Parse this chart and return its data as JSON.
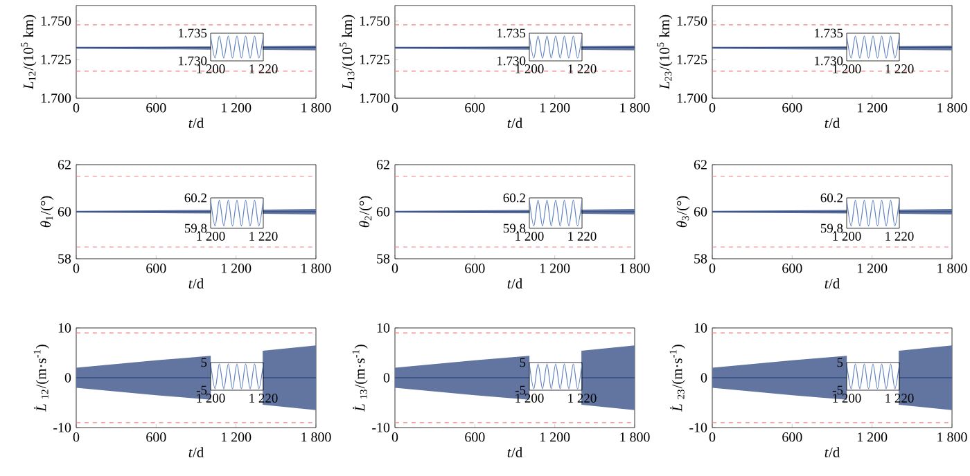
{
  "chart_data": [
    {
      "type": "line",
      "xlabel": "*t*/d",
      "ylabel": "*L*$_{12}$/(10$^{5}$ km)",
      "x": [
        0,
        600,
        1010,
        1200,
        1400,
        1800
      ],
      "series": [
        {
          "color": "#1f3a78",
          "values": [
            1.733,
            1.733,
            1.733,
            null,
            1.733,
            1.733
          ],
          "lower": [
            1.732,
            1.7317,
            1.7315,
            null,
            1.7313,
            1.731
          ],
          "upper": [
            1.733,
            1.7333,
            1.7335,
            null,
            1.7337,
            1.734
          ]
        }
      ],
      "xlim": [
        0,
        1800
      ],
      "xticks": [
        0,
        600,
        {
          "value": 1200,
          "label": "1 200"
        },
        {
          "value": 1800,
          "label": "1 800"
        }
      ],
      "ylim": [
        1.7,
        1.76
      ],
      "yticks": [
        {
          "value": 1.7,
          "label": "1.700"
        },
        1.725,
        {
          "value": 1.75,
          "label": "1.750"
        }
      ],
      "ref_lines": [
        {
          "axis": "y",
          "value": 1.7475,
          "color": "#f08080",
          "line_style": "dashed"
        },
        {
          "axis": "y",
          "value": 1.7175,
          "color": "#f08080",
          "line_style": "dashed"
        }
      ]
    },
    {
      "type": "line",
      "xlabel": "*t*/d",
      "ylabel": "*L*$_{13}$/(10$^{5}$ km)",
      "x": [
        0,
        600,
        1010,
        1200,
        1400,
        1800
      ],
      "series": [
        {
          "color": "#1f3a78",
          "values": [
            1.733,
            1.733,
            1.733,
            null,
            1.733,
            1.733
          ],
          "lower": [
            1.732,
            1.7317,
            1.7315,
            null,
            1.7313,
            1.731
          ],
          "upper": [
            1.733,
            1.7333,
            1.7335,
            null,
            1.7337,
            1.734
          ]
        }
      ],
      "xlim": [
        0,
        1800
      ],
      "xticks": [
        0,
        600,
        {
          "value": 1200,
          "label": "1 200"
        },
        {
          "value": 1800,
          "label": "1 800"
        }
      ],
      "ylim": [
        1.7,
        1.76
      ],
      "yticks": [
        {
          "value": 1.7,
          "label": "1.700"
        },
        1.725,
        {
          "value": 1.75,
          "label": "1.750"
        }
      ],
      "ref_lines": [
        {
          "axis": "y",
          "value": 1.7475,
          "color": "#f08080",
          "line_style": "dashed"
        },
        {
          "axis": "y",
          "value": 1.7175,
          "color": "#f08080",
          "line_style": "dashed"
        }
      ]
    },
    {
      "type": "line",
      "xlabel": "*t*/d",
      "ylabel": "*L*$_{23}$/(10$^{5}$ km)",
      "x": [
        0,
        600,
        1010,
        1200,
        1400,
        1800
      ],
      "series": [
        {
          "color": "#1f3a78",
          "values": [
            1.733,
            1.733,
            1.733,
            null,
            1.733,
            1.733
          ],
          "lower": [
            1.732,
            1.7317,
            1.7315,
            null,
            1.7313,
            1.731
          ],
          "upper": [
            1.733,
            1.7333,
            1.7335,
            null,
            1.7337,
            1.734
          ]
        }
      ],
      "xlim": [
        0,
        1800
      ],
      "xticks": [
        0,
        600,
        {
          "value": 1200,
          "label": "1 200"
        },
        {
          "value": 1800,
          "label": "1 800"
        }
      ],
      "ylim": [
        1.7,
        1.76
      ],
      "yticks": [
        {
          "value": 1.7,
          "label": "1.700"
        },
        1.725,
        {
          "value": 1.75,
          "label": "1.750"
        }
      ],
      "ref_lines": [
        {
          "axis": "y",
          "value": 1.7475,
          "color": "#f08080",
          "line_style": "dashed"
        },
        {
          "axis": "y",
          "value": 1.7175,
          "color": "#f08080",
          "line_style": "dashed"
        }
      ]
    },
    {
      "type": "line",
      "xlabel": "*t*/d",
      "ylabel": "*θ*$_{1}$/(°)",
      "x": [
        0,
        600,
        1010,
        1200,
        1400,
        1800
      ],
      "series": [
        {
          "color": "#1f3a78",
          "values": [
            60,
            60,
            60,
            null,
            60,
            60
          ],
          "lower": [
            59.96,
            59.94,
            59.93,
            null,
            59.91,
            59.88
          ],
          "upper": [
            60.04,
            60.06,
            60.07,
            null,
            60.09,
            60.12
          ]
        }
      ],
      "xlim": [
        0,
        1800
      ],
      "xticks": [
        0,
        600,
        {
          "value": 1200,
          "label": "1 200"
        },
        {
          "value": 1800,
          "label": "1 800"
        }
      ],
      "ylim": [
        58,
        62
      ],
      "yticks": [
        58,
        60,
        62
      ],
      "ref_lines": [
        {
          "axis": "y",
          "value": 61.5,
          "color": "#f08080",
          "line_style": "dashed"
        },
        {
          "axis": "y",
          "value": 58.5,
          "color": "#f08080",
          "line_style": "dashed"
        }
      ]
    },
    {
      "type": "line",
      "xlabel": "*t*/d",
      "ylabel": "*θ*$_{2}$/(°)",
      "x": [
        0,
        600,
        1010,
        1200,
        1400,
        1800
      ],
      "series": [
        {
          "color": "#1f3a78",
          "values": [
            60,
            60,
            60,
            null,
            60,
            60
          ],
          "lower": [
            59.96,
            59.94,
            59.93,
            null,
            59.91,
            59.88
          ],
          "upper": [
            60.04,
            60.06,
            60.07,
            null,
            60.09,
            60.12
          ]
        }
      ],
      "xlim": [
        0,
        1800
      ],
      "xticks": [
        0,
        600,
        {
          "value": 1200,
          "label": "1 200"
        },
        {
          "value": 1800,
          "label": "1 800"
        }
      ],
      "ylim": [
        58,
        62
      ],
      "yticks": [
        58,
        60,
        62
      ],
      "ref_lines": [
        {
          "axis": "y",
          "value": 61.5,
          "color": "#f08080",
          "line_style": "dashed"
        },
        {
          "axis": "y",
          "value": 58.5,
          "color": "#f08080",
          "line_style": "dashed"
        }
      ]
    },
    {
      "type": "line",
      "xlabel": "*t*/d",
      "ylabel": "*θ*$_{3}$/(°)",
      "x": [
        0,
        600,
        1010,
        1200,
        1400,
        1800
      ],
      "series": [
        {
          "color": "#1f3a78",
          "values": [
            60,
            60,
            60,
            null,
            60,
            60
          ],
          "lower": [
            59.96,
            59.94,
            59.93,
            null,
            59.91,
            59.88
          ],
          "upper": [
            60.04,
            60.06,
            60.07,
            null,
            60.09,
            60.12
          ]
        }
      ],
      "xlim": [
        0,
        1800
      ],
      "xticks": [
        0,
        600,
        {
          "value": 1200,
          "label": "1 200"
        },
        {
          "value": 1800,
          "label": "1 800"
        }
      ],
      "ylim": [
        58,
        62
      ],
      "yticks": [
        58,
        60,
        62
      ],
      "ref_lines": [
        {
          "axis": "y",
          "value": 61.5,
          "color": "#f08080",
          "line_style": "dashed"
        },
        {
          "axis": "y",
          "value": 58.5,
          "color": "#f08080",
          "line_style": "dashed"
        }
      ]
    },
    {
      "type": "line",
      "xlabel": "*t*/d",
      "ylabel": "*L̇*$_{12}$/(m·s$^{-1}$)",
      "x": [
        0,
        600,
        1010,
        1200,
        1400,
        1800
      ],
      "series": [
        {
          "color": "#1f3a78",
          "values": [
            0,
            0,
            0,
            null,
            0,
            0
          ],
          "lower": [
            -2,
            -3.5,
            -4.4,
            null,
            -5.4,
            -6.5
          ],
          "upper": [
            2,
            3.5,
            4.4,
            null,
            5.4,
            6.5
          ]
        }
      ],
      "xlim": [
        0,
        1800
      ],
      "xticks": [
        0,
        600,
        {
          "value": 1200,
          "label": "1 200"
        },
        {
          "value": 1800,
          "label": "1 800"
        }
      ],
      "ylim": [
        -10,
        10
      ],
      "yticks": [
        -10,
        0,
        10
      ],
      "ref_lines": [
        {
          "axis": "y",
          "value": 9,
          "color": "#f08080",
          "line_style": "dashed"
        },
        {
          "axis": "y",
          "value": -9,
          "color": "#f08080",
          "line_style": "dashed"
        }
      ]
    },
    {
      "type": "line",
      "xlabel": "*t*/d",
      "ylabel": "*L̇*$_{13}$/(m·s$^{-1}$)",
      "x": [
        0,
        600,
        1010,
        1200,
        1400,
        1800
      ],
      "series": [
        {
          "color": "#1f3a78",
          "values": [
            0,
            0,
            0,
            null,
            0,
            0
          ],
          "lower": [
            -2,
            -3.5,
            -4.4,
            null,
            -5.4,
            -6.5
          ],
          "upper": [
            2,
            3.5,
            4.4,
            null,
            5.4,
            6.5
          ]
        }
      ],
      "xlim": [
        0,
        1800
      ],
      "xticks": [
        0,
        600,
        {
          "value": 1200,
          "label": "1 200"
        },
        {
          "value": 1800,
          "label": "1 800"
        }
      ],
      "ylim": [
        -10,
        10
      ],
      "yticks": [
        -10,
        0,
        10
      ],
      "ref_lines": [
        {
          "axis": "y",
          "value": 9,
          "color": "#f08080",
          "line_style": "dashed"
        },
        {
          "axis": "y",
          "value": -9,
          "color": "#f08080",
          "line_style": "dashed"
        }
      ]
    },
    {
      "type": "line",
      "xlabel": "*t*/d",
      "ylabel": "*L̇*$_{23}$/(m·s$^{-1}$)",
      "x": [
        0,
        600,
        1010,
        1200,
        1400,
        1800
      ],
      "series": [
        {
          "color": "#1f3a78",
          "values": [
            0,
            0,
            0,
            null,
            0,
            0
          ],
          "lower": [
            -2,
            -3.5,
            -4.4,
            null,
            -5.4,
            -6.5
          ],
          "upper": [
            2,
            3.5,
            4.4,
            null,
            5.4,
            6.5
          ]
        }
      ],
      "xlim": [
        0,
        1800
      ],
      "xticks": [
        0,
        600,
        {
          "value": 1200,
          "label": "1 200"
        },
        {
          "value": 1800,
          "label": "1 800"
        }
      ],
      "ylim": [
        -10,
        10
      ],
      "yticks": [
        -10,
        0,
        10
      ],
      "ref_lines": [
        {
          "axis": "y",
          "value": 9,
          "color": "#f08080",
          "line_style": "dashed"
        },
        {
          "axis": "y",
          "value": -9,
          "color": "#f08080",
          "line_style": "dashed"
        }
      ]
    },
    {
      "type": "line",
      "x": [
        1200,
        1201.7,
        1203.3,
        1205,
        1206.7,
        1208.3,
        1210,
        1211.7,
        1213.3,
        1215,
        1216.7,
        1218.3,
        1220
      ],
      "series": [
        {
          "color": "#5b7fc0",
          "values": [
            1.7345,
            1.7305,
            1.7345,
            1.7305,
            1.7345,
            1.7305,
            1.7345,
            1.7305,
            1.7345,
            1.7305,
            1.7345,
            1.7305,
            1.7345
          ]
        }
      ],
      "xlim": [
        1200,
        1220
      ],
      "xticks": [
        {
          "value": 1200,
          "label": "1 200"
        },
        {
          "value": 1220,
          "label": "1 220"
        }
      ],
      "ylim": [
        1.73,
        1.735
      ],
      "yticks": [
        {
          "value": 1.73,
          "label": "1.730"
        },
        1.735
      ]
    },
    {
      "type": "line",
      "x": [
        1200,
        1201.7,
        1203.3,
        1205,
        1206.7,
        1208.3,
        1210,
        1211.7,
        1213.3,
        1215,
        1216.7,
        1218.3,
        1220
      ],
      "series": [
        {
          "color": "#5b7fc0",
          "values": [
            1.7345,
            1.7305,
            1.7345,
            1.7305,
            1.7345,
            1.7305,
            1.7345,
            1.7305,
            1.7345,
            1.7305,
            1.7345,
            1.7305,
            1.7345
          ]
        }
      ],
      "xlim": [
        1200,
        1220
      ],
      "xticks": [
        {
          "value": 1200,
          "label": "1 200"
        },
        {
          "value": 1220,
          "label": "1 220"
        }
      ],
      "ylim": [
        1.73,
        1.735
      ],
      "yticks": [
        {
          "value": 1.73,
          "label": "1.730"
        },
        1.735
      ]
    },
    {
      "type": "line",
      "x": [
        1200,
        1201.7,
        1203.3,
        1205,
        1206.7,
        1208.3,
        1210,
        1211.7,
        1213.3,
        1215,
        1216.7,
        1218.3,
        1220
      ],
      "series": [
        {
          "color": "#5b7fc0",
          "values": [
            1.7345,
            1.7305,
            1.7345,
            1.7305,
            1.7345,
            1.7305,
            1.7345,
            1.7305,
            1.7345,
            1.7305,
            1.7345,
            1.7305,
            1.7345
          ]
        }
      ],
      "xlim": [
        1200,
        1220
      ],
      "xticks": [
        {
          "value": 1200,
          "label": "1 200"
        },
        {
          "value": 1220,
          "label": "1 220"
        }
      ],
      "ylim": [
        1.73,
        1.735
      ],
      "yticks": [
        {
          "value": 1.73,
          "label": "1.730"
        },
        1.735
      ]
    },
    {
      "type": "line",
      "x": [
        1200,
        1201.7,
        1203.3,
        1205,
        1206.7,
        1208.3,
        1210,
        1211.7,
        1213.3,
        1215,
        1216.7,
        1218.3,
        1220
      ],
      "series": [
        {
          "color": "#5b7fc0",
          "values": [
            60.17,
            59.83,
            60.17,
            59.83,
            60.17,
            59.83,
            60.17,
            59.83,
            60.17,
            59.83,
            60.17,
            59.83,
            60.17
          ]
        }
      ],
      "xlim": [
        1200,
        1220
      ],
      "xticks": [
        {
          "value": 1200,
          "label": "1 200"
        },
        {
          "value": 1220,
          "label": "1 220"
        }
      ],
      "ylim": [
        59.8,
        60.2
      ],
      "yticks": [
        59.8,
        60.2
      ]
    },
    {
      "type": "line",
      "x": [
        1200,
        1201.7,
        1203.3,
        1205,
        1206.7,
        1208.3,
        1210,
        1211.7,
        1213.3,
        1215,
        1216.7,
        1218.3,
        1220
      ],
      "series": [
        {
          "color": "#5b7fc0",
          "values": [
            60.17,
            59.83,
            60.17,
            59.83,
            60.17,
            59.83,
            60.17,
            59.83,
            60.17,
            59.83,
            60.17,
            59.83,
            60.17
          ]
        }
      ],
      "xlim": [
        1200,
        1220
      ],
      "xticks": [
        {
          "value": 1200,
          "label": "1 200"
        },
        {
          "value": 1220,
          "label": "1 220"
        }
      ],
      "ylim": [
        59.8,
        60.2
      ],
      "yticks": [
        59.8,
        60.2
      ]
    },
    {
      "type": "line",
      "x": [
        1200,
        1201.7,
        1203.3,
        1205,
        1206.7,
        1208.3,
        1210,
        1211.7,
        1213.3,
        1215,
        1216.7,
        1218.3,
        1220
      ],
      "series": [
        {
          "color": "#5b7fc0",
          "values": [
            60.17,
            59.83,
            60.17,
            59.83,
            60.17,
            59.83,
            60.17,
            59.83,
            60.17,
            59.83,
            60.17,
            59.83,
            60.17
          ]
        }
      ],
      "xlim": [
        1200,
        1220
      ],
      "xticks": [
        {
          "value": 1200,
          "label": "1 200"
        },
        {
          "value": 1220,
          "label": "1 220"
        }
      ],
      "ylim": [
        59.8,
        60.2
      ],
      "yticks": [
        59.8,
        60.2
      ]
    },
    {
      "type": "line",
      "x": [
        1200,
        1201.7,
        1203.3,
        1205,
        1206.7,
        1208.3,
        1210,
        1211.7,
        1213.3,
        1215,
        1216.7,
        1218.3,
        1220
      ],
      "series": [
        {
          "color": "#5b7fc0",
          "values": [
            4.5,
            -4.5,
            4.5,
            -4.5,
            4.5,
            -4.5,
            4.5,
            -4.5,
            4.5,
            -4.5,
            4.5,
            -4.5,
            4.5
          ]
        }
      ],
      "xlim": [
        1200,
        1220
      ],
      "xticks": [
        {
          "value": 1200,
          "label": "1 200"
        },
        {
          "value": 1220,
          "label": "1 220"
        }
      ],
      "ylim": [
        -5,
        5
      ],
      "yticks": [
        -5,
        5
      ]
    },
    {
      "type": "line",
      "x": [
        1200,
        1201.7,
        1203.3,
        1205,
        1206.7,
        1208.3,
        1210,
        1211.7,
        1213.3,
        1215,
        1216.7,
        1218.3,
        1220
      ],
      "series": [
        {
          "color": "#5b7fc0",
          "values": [
            4.5,
            -4.5,
            4.5,
            -4.5,
            4.5,
            -4.5,
            4.5,
            -4.5,
            4.5,
            -4.5,
            4.5,
            -4.5,
            4.5
          ]
        }
      ],
      "xlim": [
        1200,
        1220
      ],
      "xticks": [
        {
          "value": 1200,
          "label": "1 200"
        },
        {
          "value": 1220,
          "label": "1 220"
        }
      ],
      "ylim": [
        -5,
        5
      ],
      "yticks": [
        -5,
        5
      ]
    },
    {
      "type": "line",
      "x": [
        1200,
        1201.7,
        1203.3,
        1205,
        1206.7,
        1208.3,
        1210,
        1211.7,
        1213.3,
        1215,
        1216.7,
        1218.3,
        1220
      ],
      "series": [
        {
          "color": "#5b7fc0",
          "values": [
            4.5,
            -4.5,
            4.5,
            -4.5,
            4.5,
            -4.5,
            4.5,
            -4.5,
            4.5,
            -4.5,
            4.5,
            -4.5,
            4.5
          ]
        }
      ],
      "xlim": [
        1200,
        1220
      ],
      "xticks": [
        {
          "value": 1200,
          "label": "1 200"
        },
        {
          "value": 1220,
          "label": "1 220"
        }
      ],
      "ylim": [
        -5,
        5
      ],
      "yticks": [
        -5,
        5
      ]
    }
  ]
}
